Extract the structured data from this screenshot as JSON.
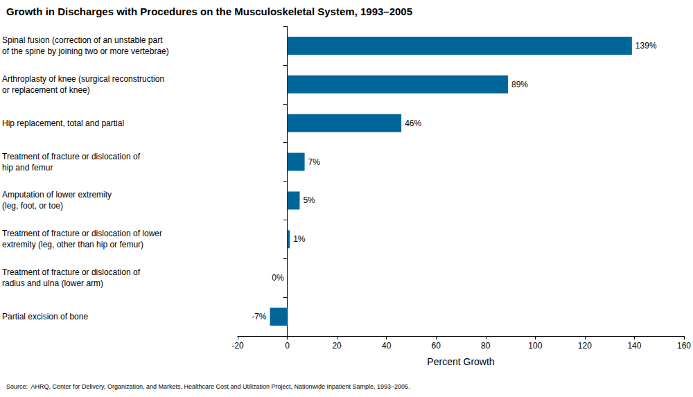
{
  "chart_data": {
    "type": "bar",
    "orientation": "horizontal",
    "title": "Growth in Discharges with Procedures on the Musculoskeletal System, 1993–2005",
    "source": "Source:  AHRQ, Center for Delivery, Organization, and Markets, Healthcare Cost and Utilization Project, Nationwide Inpatient Sample, 1993–2005.",
    "x_label": "Percent Growth",
    "categories": [
      "Spinal fusion (correction of an unstable part\nof the spine by joining two or more vertebrae)",
      "Arthroplasty of knee (surgical reconstruction\nor replacement of knee)",
      "Hip replacement, total and partial",
      "Treatment of fracture or dislocation of\nhip and femur",
      "Amputation of lower extremity\n(leg, foot, or toe)",
      "Treatment of fracture or dislocation of lower\nextremity (leg, other than hip or femur)",
      "Treatment of fracture or dislocation of\nradius and ulna (lower arm)",
      "Partial excision of bone"
    ],
    "values": [
      139,
      89,
      46,
      7,
      5,
      1,
      0,
      -7
    ],
    "value_labels": [
      "139%",
      "89%",
      "46%",
      "7%",
      "5%",
      "1%",
      "0%",
      "-7%"
    ],
    "color": "#00669a",
    "xlim": [
      -20,
      160
    ],
    "xticks": [
      -20,
      0,
      20,
      40,
      60,
      80,
      100,
      120,
      140,
      160
    ],
    "grid": false,
    "data_labels": true
  }
}
